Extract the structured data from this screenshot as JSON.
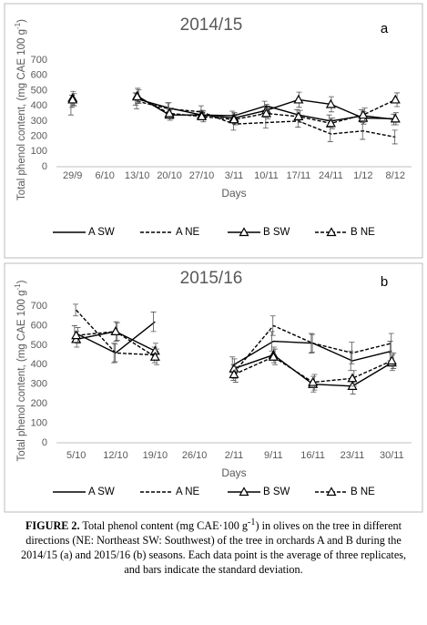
{
  "chart_data": [
    {
      "type": "line",
      "title": "2014/15",
      "panel_label": "a",
      "y_label": "Total phenol content, (mg CAE 100 g",
      "y_label_sup": "-1",
      "y_label_end": ")",
      "x_label": "Days",
      "categories": [
        "29/9",
        "6/10",
        "13/10",
        "20/10",
        "27/10",
        "3/11",
        "10/11",
        "17/11",
        "24/11",
        "1/12",
        "8/12"
      ],
      "ylim": [
        0,
        700
      ],
      "yticks": [
        0,
        100,
        200,
        300,
        400,
        500,
        600,
        700
      ],
      "legend": "bottom",
      "series": [
        {
          "name": "A SW",
          "color": "#000000",
          "dashed": false,
          "marker": "none",
          "values": [
            385,
            null,
            445,
            385,
            340,
            335,
            400,
            340,
            300,
            335,
            310
          ],
          "errors": [
            45,
            null,
            40,
            35,
            25,
            30,
            30,
            35,
            40,
            40,
            35
          ]
        },
        {
          "name": "A NE",
          "color": "#000000",
          "dashed": true,
          "marker": "none",
          "values": [
            430,
            null,
            430,
            380,
            360,
            280,
            290,
            300,
            215,
            235,
            195
          ],
          "errors": [
            40,
            null,
            50,
            40,
            40,
            40,
            35,
            40,
            50,
            55,
            45
          ]
        },
        {
          "name": "B SW",
          "color": "#000000",
          "dashed": false,
          "marker": "triangle",
          "values": [
            450,
            null,
            465,
            340,
            340,
            320,
            370,
            440,
            410,
            320,
            315
          ],
          "errors": [
            45,
            null,
            50,
            35,
            30,
            35,
            40,
            50,
            50,
            40,
            40
          ]
        },
        {
          "name": "B NE",
          "color": "#000000",
          "dashed": true,
          "marker": "triangle",
          "values": [
            440,
            null,
            460,
            350,
            330,
            310,
            350,
            330,
            285,
            340,
            440
          ],
          "errors": [
            40,
            null,
            45,
            35,
            35,
            35,
            35,
            40,
            35,
            45,
            45
          ]
        }
      ]
    },
    {
      "type": "line",
      "title": "2015/16",
      "panel_label": "b",
      "y_label": "Total phenol content, (mg CAE 100 g",
      "y_label_sup": "-1",
      "y_label_end": ")",
      "x_label": "Days",
      "categories": [
        "5/10",
        "12/10",
        "19/10",
        "26/10",
        "2/11",
        "9/11",
        "16/11",
        "23/11",
        "30/11"
      ],
      "ylim": [
        0,
        700
      ],
      "yticks": [
        0,
        100,
        200,
        300,
        400,
        500,
        600,
        700
      ],
      "legend": "bottom",
      "series": [
        {
          "name": "A SW",
          "color": "#000000",
          "dashed": false,
          "marker": "none",
          "values": [
            560,
            460,
            620,
            null,
            400,
            520,
            510,
            420,
            470
          ],
          "errors": [
            40,
            50,
            50,
            null,
            40,
            50,
            50,
            50,
            50
          ]
        },
        {
          "name": "A NE",
          "color": "#000000",
          "dashed": true,
          "marker": "none",
          "values": [
            680,
            460,
            450,
            null,
            360,
            600,
            510,
            460,
            510
          ],
          "errors": [
            30,
            45,
            40,
            null,
            40,
            50,
            45,
            55,
            50
          ]
        },
        {
          "name": "B SW",
          "color": "#000000",
          "dashed": false,
          "marker": "triangle",
          "values": [
            530,
            570,
            470,
            null,
            380,
            450,
            300,
            290,
            410
          ],
          "errors": [
            40,
            50,
            40,
            null,
            50,
            40,
            40,
            40,
            40
          ]
        },
        {
          "name": "B NE",
          "color": "#000000",
          "dashed": true,
          "marker": "triangle",
          "values": [
            550,
            570,
            440,
            null,
            350,
            440,
            310,
            330,
            420
          ],
          "errors": [
            40,
            45,
            40,
            null,
            40,
            40,
            40,
            40,
            40
          ]
        }
      ]
    }
  ],
  "caption": {
    "label": "FIGURE 2.",
    "text_before": "Total phenol content (mg CAE·100 g",
    "sup": "-1",
    "text_after": ") in olives on the tree in different directions (NE: Northeast SW: Southwest) of the tree in orchards A and B during the 2014/15 (a) and 2015/16 (b) seasons. Each data point is the average of three replicates, and bars indicate the standard deviation."
  }
}
